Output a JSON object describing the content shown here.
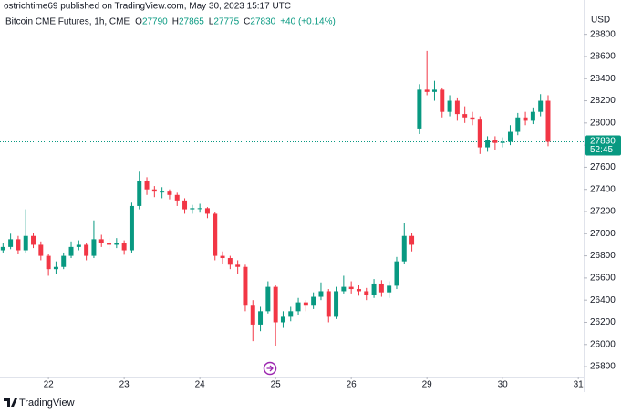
{
  "header": {
    "text": "ostrichtime69 published on TradingView.com, May 30, 2023 15:17 UTC"
  },
  "footer": {
    "brand": "TradingView"
  },
  "chart_data": {
    "type": "candlestick",
    "symbol": "Bitcoin CME Futures, 1h, CME",
    "legend_ohlc": [
      {
        "label": "O",
        "value": 27790
      },
      {
        "label": "H",
        "value": 27865
      },
      {
        "label": "L",
        "value": 27775
      },
      {
        "label": "C",
        "value": 27830
      }
    ],
    "change": "+40 (+0.14%)",
    "currency": "USD",
    "last_price": 27830,
    "countdown": "52:45",
    "up_color": "#089981",
    "down_color": "#f23645",
    "grid": false,
    "xlim": [
      21.36,
      29.07
    ],
    "xticks": [
      22,
      23,
      24,
      25,
      26,
      {
        "value": 27,
        "label": "29"
      },
      {
        "value": 28,
        "label": "30"
      },
      {
        "value": 29,
        "label": "31"
      }
    ],
    "ylim": [
      25710,
      29110
    ],
    "yticks": [
      25800,
      26000,
      26200,
      26400,
      26600,
      26800,
      27000,
      27200,
      27400,
      27600,
      27800,
      28000,
      28200,
      28400,
      28600,
      28800
    ],
    "x": [
      21.4,
      21.5,
      21.6,
      21.7,
      21.8,
      21.9,
      22.0,
      22.1,
      22.2,
      22.3,
      22.4,
      22.5,
      22.6,
      22.7,
      22.8,
      22.9,
      23.0,
      23.1,
      23.2,
      23.3,
      23.4,
      23.5,
      23.6,
      23.7,
      23.8,
      23.9,
      24.0,
      24.1,
      24.2,
      24.3,
      24.4,
      24.5,
      24.6,
      24.7,
      24.8,
      24.9,
      25.0,
      25.1,
      25.2,
      25.3,
      25.4,
      25.5,
      25.6,
      25.7,
      25.8,
      25.9,
      26.0,
      26.1,
      26.2,
      26.3,
      26.4,
      26.5,
      26.6,
      26.7,
      26.8,
      26.9,
      27.0,
      27.1,
      27.2,
      27.3,
      27.4,
      27.5,
      27.6,
      27.7,
      27.8,
      27.9,
      28.0,
      28.1,
      28.2,
      28.3,
      28.4,
      28.5,
      28.6
    ],
    "open": [
      26850,
      26880,
      26950,
      26850,
      26980,
      26900,
      26800,
      26680,
      26700,
      26800,
      26880,
      26900,
      26800,
      26950,
      26920,
      26900,
      26920,
      26850,
      27250,
      27480,
      27400,
      27380,
      27380,
      27350,
      27300,
      27220,
      27230,
      27230,
      27180,
      26800,
      26780,
      26720,
      26700,
      26350,
      26180,
      26300,
      26520,
      26200,
      26250,
      26300,
      26380,
      26350,
      26430,
      26480,
      26250,
      26480,
      26520,
      26500,
      26480,
      26450,
      26550,
      26470,
      26530,
      26750,
      26980,
      27950,
      28300,
      28280,
      28300,
      28100,
      28200,
      28080,
      28050,
      28030,
      27780,
      27850,
      27820,
      27830,
      27920,
      28050,
      28020,
      28100,
      28200
    ],
    "high": [
      26920,
      27000,
      26980,
      27220,
      27010,
      26930,
      26820,
      26750,
      26830,
      26930,
      26940,
      26920,
      27120,
      26990,
      26960,
      26960,
      26940,
      27280,
      27560,
      27510,
      27430,
      27420,
      27400,
      27370,
      27320,
      27260,
      27270,
      27240,
      27200,
      26840,
      26800,
      26760,
      26720,
      26400,
      26340,
      26570,
      26540,
      26300,
      26340,
      26420,
      26400,
      26470,
      26560,
      26500,
      26520,
      26620,
      26570,
      26540,
      26510,
      26590,
      26580,
      26570,
      26790,
      27100,
      27010,
      28350,
      28650,
      28380,
      28320,
      28250,
      28230,
      28150,
      28100,
      28060,
      27880,
      27880,
      27870,
      27980,
      28090,
      28100,
      28140,
      28260,
      28250
    ],
    "low": [
      26830,
      26860,
      26820,
      26830,
      26870,
      26760,
      26620,
      26640,
      26680,
      26780,
      26850,
      26760,
      26780,
      26880,
      26860,
      26870,
      26810,
      26830,
      27220,
      27350,
      27330,
      27320,
      27310,
      27250,
      27180,
      27180,
      27190,
      27140,
      26760,
      26730,
      26680,
      26640,
      26300,
      26030,
      26120,
      26280,
      25990,
      26150,
      26210,
      26270,
      26300,
      26320,
      26400,
      26200,
      26230,
      26460,
      26460,
      26440,
      26400,
      26420,
      26430,
      26420,
      26500,
      26730,
      26840,
      27900,
      28250,
      28200,
      28050,
      28060,
      28020,
      28000,
      27980,
      27720,
      27740,
      27760,
      27780,
      27800,
      27890,
      27980,
      27990,
      28060,
      27790
    ],
    "close": [
      26880,
      26950,
      26850,
      26980,
      26900,
      26800,
      26680,
      26700,
      26800,
      26880,
      26900,
      26800,
      26950,
      26920,
      26900,
      26920,
      26850,
      27250,
      27480,
      27400,
      27380,
      27380,
      27350,
      27300,
      27220,
      27230,
      27230,
      27180,
      26800,
      26780,
      26720,
      26700,
      26350,
      26180,
      26300,
      26520,
      26200,
      26250,
      26300,
      26380,
      26350,
      26430,
      26480,
      26250,
      26480,
      26520,
      26500,
      26480,
      26450,
      26550,
      26470,
      26530,
      26750,
      26980,
      26900,
      28300,
      28280,
      28300,
      28100,
      28200,
      28080,
      28050,
      28030,
      27780,
      27850,
      27820,
      27830,
      27920,
      28050,
      28020,
      28100,
      28200,
      27830
    ]
  }
}
